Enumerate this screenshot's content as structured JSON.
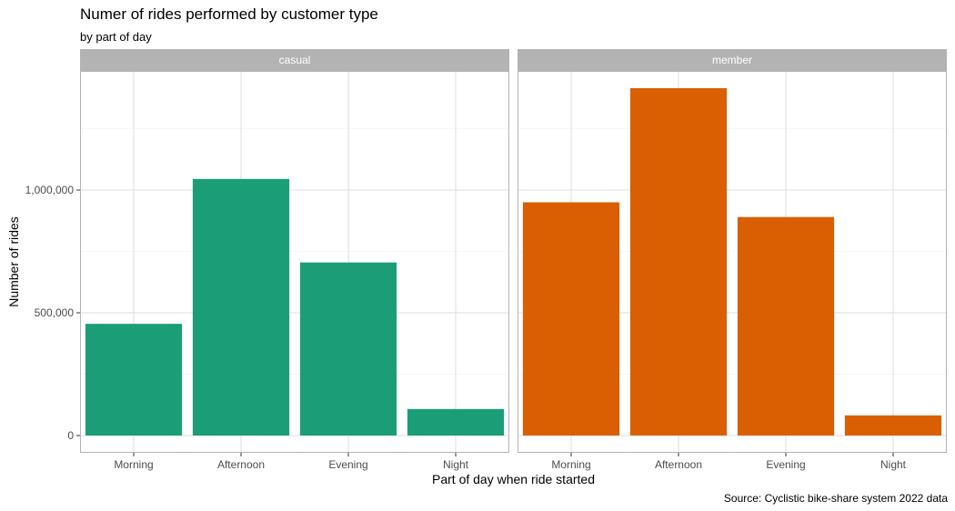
{
  "title": "Numer of rides performed by customer type",
  "subtitle": "by part of day",
  "caption": "Source: Cyclistic bike-share system 2022 data",
  "chart_data": {
    "type": "bar",
    "title": "Numer of rides performed by customer type",
    "subtitle": "by part of day",
    "xlabel": "Part of day when ride started",
    "ylabel": "Number of rides",
    "categories": [
      "Morning",
      "Afternoon",
      "Evening",
      "Night"
    ],
    "y_ticks": [
      0,
      500000,
      1000000
    ],
    "y_tick_labels": [
      "0",
      "500,000",
      "1,000,000"
    ],
    "ylim": [
      0,
      1480000
    ],
    "grid": true,
    "legend": "none",
    "facets": [
      {
        "name": "casual",
        "color": "#1b9e77",
        "values": [
          455000,
          1045000,
          705000,
          108000
        ]
      },
      {
        "name": "member",
        "color": "#d95f02",
        "values": [
          950000,
          1415000,
          890000,
          82000
        ]
      }
    ]
  },
  "colors": {
    "strip_background": "#b3b3b3",
    "strip_text": "#ffffff",
    "grid_major": "#dedede",
    "grid_minor": "#efefef",
    "panel_border": "#b3b3b3",
    "axis_text": "#4d4d4d"
  }
}
